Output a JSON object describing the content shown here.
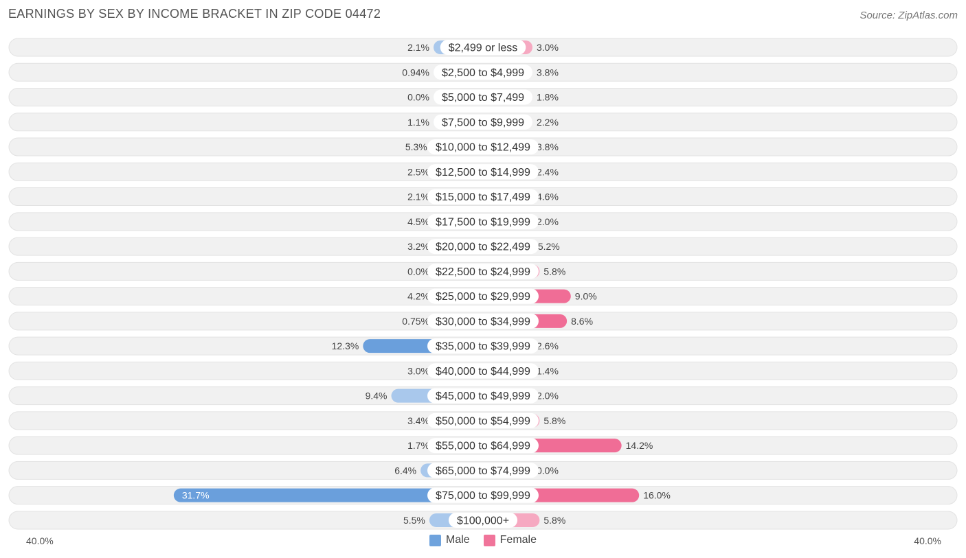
{
  "header": {
    "title": "EARNINGS BY SEX BY INCOME BRACKET IN ZIP CODE 04472",
    "source": "Source: ZipAtlas.com"
  },
  "legend": {
    "male_label": "Male",
    "female_label": "Female"
  },
  "axis": {
    "left_label": "40.0%",
    "right_label": "40.0%"
  },
  "colors": {
    "male_light": "#a9c8ec",
    "male_strong": "#6a9fdc",
    "female_light": "#f6a9c1",
    "female_strong": "#f06d96",
    "row_bg": "#f1f1f1",
    "row_border": "#e2e2e2"
  },
  "chart_data": {
    "type": "bar",
    "orientation": "horizontal-diverging",
    "title": "EARNINGS BY SEX BY INCOME BRACKET IN ZIP CODE 04472",
    "xlim": [
      -40,
      40
    ],
    "categories": [
      "$2,499 or less",
      "$2,500 to $4,999",
      "$5,000 to $7,499",
      "$7,500 to $9,999",
      "$10,000 to $12,499",
      "$12,500 to $14,999",
      "$15,000 to $17,499",
      "$17,500 to $19,999",
      "$20,000 to $22,499",
      "$22,500 to $24,999",
      "$25,000 to $29,999",
      "$30,000 to $34,999",
      "$35,000 to $39,999",
      "$40,000 to $44,999",
      "$45,000 to $49,999",
      "$50,000 to $54,999",
      "$55,000 to $64,999",
      "$65,000 to $74,999",
      "$75,000 to $99,999",
      "$100,000+"
    ],
    "series": [
      {
        "name": "Male",
        "values": [
          2.1,
          0.94,
          0.0,
          1.1,
          5.3,
          2.5,
          2.1,
          4.5,
          3.2,
          0.0,
          4.2,
          0.75,
          12.3,
          3.0,
          9.4,
          3.4,
          1.7,
          6.4,
          31.7,
          5.5
        ],
        "labels": [
          "2.1%",
          "0.94%",
          "0.0%",
          "1.1%",
          "5.3%",
          "2.5%",
          "2.1%",
          "4.5%",
          "3.2%",
          "0.0%",
          "4.2%",
          "0.75%",
          "12.3%",
          "3.0%",
          "9.4%",
          "3.4%",
          "1.7%",
          "6.4%",
          "31.7%",
          "5.5%"
        ]
      },
      {
        "name": "Female",
        "values": [
          3.0,
          3.8,
          1.8,
          2.2,
          3.8,
          2.4,
          4.6,
          2.0,
          5.2,
          5.8,
          9.0,
          8.6,
          2.6,
          1.4,
          2.0,
          5.8,
          14.2,
          0.0,
          16.0,
          5.8
        ],
        "labels": [
          "3.0%",
          "3.8%",
          "1.8%",
          "2.2%",
          "3.8%",
          "2.4%",
          "4.6%",
          "2.0%",
          "5.2%",
          "5.8%",
          "9.0%",
          "8.6%",
          "2.6%",
          "1.4%",
          "2.0%",
          "5.8%",
          "14.2%",
          "0.0%",
          "16.0%",
          "5.8%"
        ]
      }
    ]
  }
}
